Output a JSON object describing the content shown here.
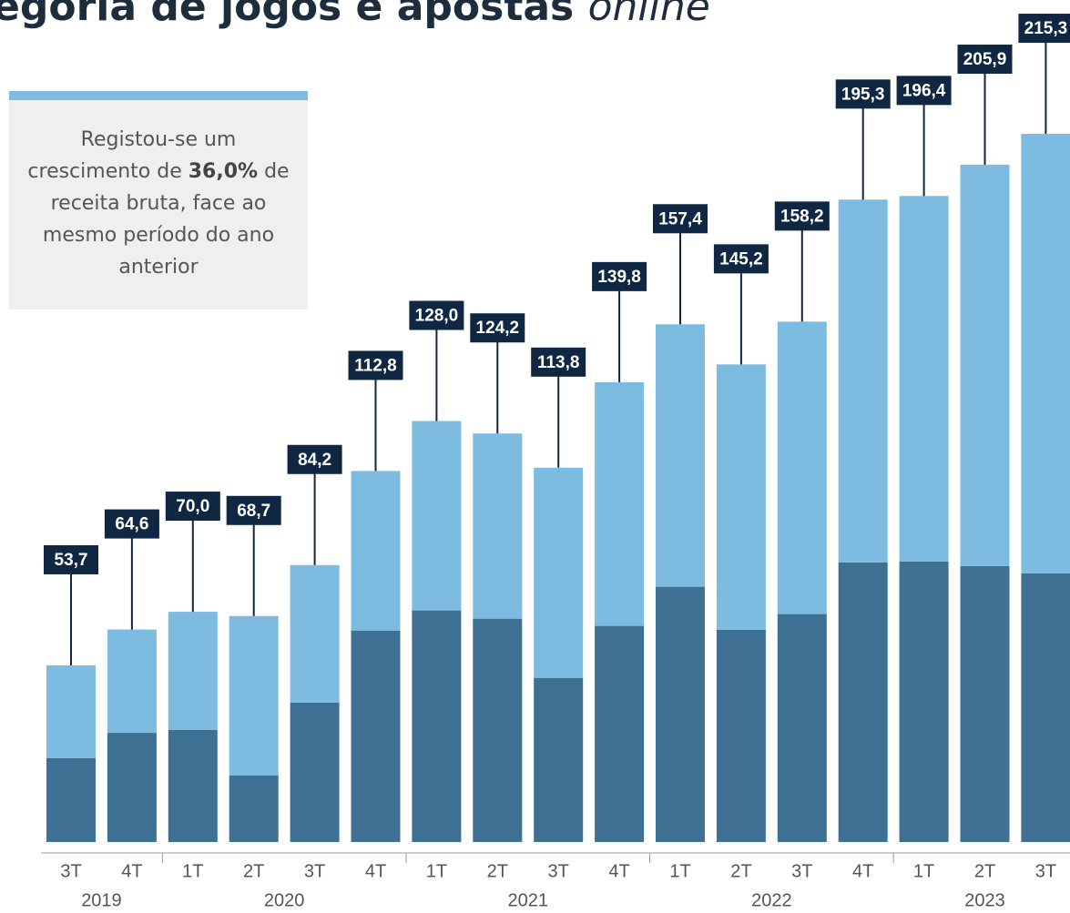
{
  "chart_data": {
    "type": "stacked_bar",
    "title": "egoria de jogos e apostas ",
    "title_italic": "online",
    "annotation": {
      "before": "Registou-se um crescimento de ",
      "bold": "36,0%",
      "after": " de receita bruta, face ao mesmo período do ano anterior"
    },
    "groups": [
      {
        "label": "2019",
        "categories": [
          "3T",
          "4T"
        ]
      },
      {
        "label": "2020",
        "categories": [
          "1T",
          "2T",
          "3T",
          "4T"
        ]
      },
      {
        "label": "2021",
        "categories": [
          "1T",
          "2T",
          "3T",
          "4T"
        ]
      },
      {
        "label": "2022",
        "categories": [
          "1T",
          "2T",
          "3T",
          "4T"
        ]
      },
      {
        "label": "2023",
        "categories": [
          "1T",
          "2T",
          "3T"
        ]
      }
    ],
    "series": [
      {
        "color": "#3d7093",
        "values": [
          25.5,
          33.2,
          34.1,
          20.2,
          42.4,
          64.3,
          70.4,
          67.9,
          49.9,
          65.7,
          77.6,
          64.5,
          69.3,
          85.0,
          85.3,
          83.9,
          81.7
        ]
      },
      {
        "color": "#7dbbe0",
        "values": [
          28.2,
          31.4,
          35.9,
          48.5,
          41.8,
          48.5,
          57.6,
          56.3,
          63.9,
          74.1,
          79.8,
          80.7,
          88.9,
          110.3,
          111.1,
          122.0,
          133.6
        ]
      }
    ],
    "totals": [
      53.7,
      64.6,
      70.0,
      68.7,
      84.2,
      112.8,
      128.0,
      124.2,
      113.8,
      139.8,
      157.4,
      145.2,
      158.2,
      195.3,
      196.4,
      205.9,
      215.3
    ],
    "total_labels": [
      "53,7",
      "64,6",
      "70,0",
      "68,7",
      "84,2",
      "112,8",
      "128,0",
      "124,2",
      "113,8",
      "139,8",
      "157,4",
      "145,2",
      "158,2",
      "195,3",
      "196,4",
      "205,9",
      "215,3"
    ],
    "ylim": [
      0,
      256
    ]
  }
}
